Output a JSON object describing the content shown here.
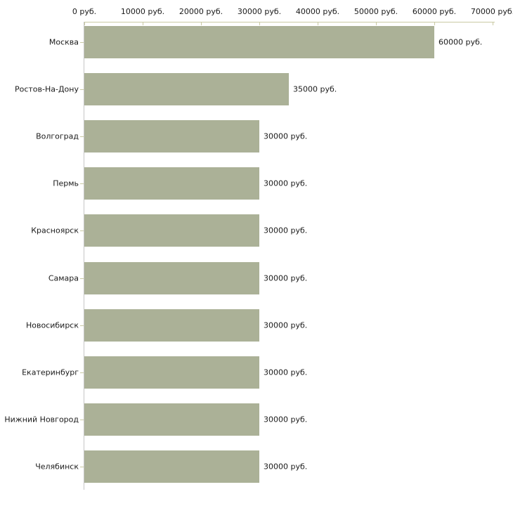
{
  "chart_data": {
    "type": "bar",
    "orientation": "horizontal",
    "title": "",
    "xlabel": "",
    "ylabel": "",
    "unit": "руб.",
    "categories": [
      "Москва",
      "Ростов-На-Дону",
      "Волгоград",
      "Пермь",
      "Красноярск",
      "Самара",
      "Новосибирск",
      "Екатеринбург",
      "Нижний Новгород",
      "Челябинск"
    ],
    "values": [
      60000,
      35000,
      30000,
      30000,
      30000,
      30000,
      30000,
      30000,
      30000,
      30000
    ],
    "value_labels": [
      "60000 руб.",
      "35000 руб.",
      "30000 руб.",
      "30000 руб.",
      "30000 руб.",
      "30000 руб.",
      "30000 руб.",
      "30000 руб.",
      "30000 руб.",
      "30000 руб."
    ],
    "x_ticks": [
      0,
      10000,
      20000,
      30000,
      40000,
      50000,
      60000,
      70000
    ],
    "x_tick_labels": [
      "0 руб.",
      "10000 руб.",
      "20000 руб.",
      "30000 руб.",
      "40000 руб.",
      "50000 руб.",
      "60000 руб.",
      "70000 руб."
    ],
    "xlim": [
      0,
      70000
    ],
    "grid": false,
    "legend": false,
    "colors": {
      "bar_fill": "#abb197",
      "value_axis": "#c9c9a3",
      "category_axis": "#c6c6c6",
      "text": "#1a1a1a",
      "background": "#ffffff"
    }
  }
}
